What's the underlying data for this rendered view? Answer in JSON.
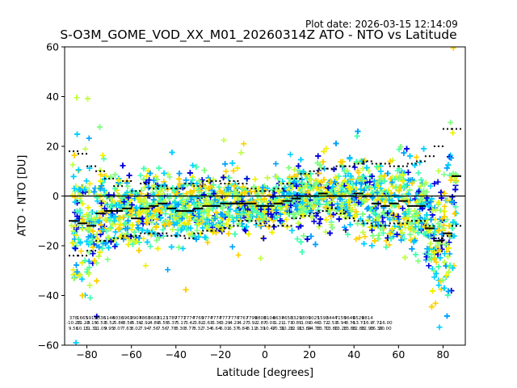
{
  "header": {
    "plot_date": "Plot date: 2026-03-15 12:14:09",
    "title": "S-O3M_GOME_VOD_XX_M01_20260314Z ATO - NTO vs Latitude"
  },
  "chart_data": {
    "type": "scatter",
    "title": "S-O3M_GOME_VOD_XX_M01_20260314Z ATO - NTO vs Latitude",
    "xlabel": "Latitude [degrees]",
    "ylabel": "ATO - NTO [DU]",
    "xlim": [
      -90,
      90
    ],
    "ylim": [
      -60,
      60
    ],
    "xticks": [
      -80,
      -60,
      -40,
      -20,
      0,
      20,
      40,
      60,
      80
    ],
    "yticks": [
      -60,
      -40,
      -20,
      0,
      20,
      40,
      60
    ],
    "zero_line": 0,
    "marker": "+",
    "point_colors": [
      "#0000dd",
      "#00a0ff",
      "#00d0ff",
      "#40ffb0",
      "#80ff80",
      "#c0ff40",
      "#f0f000",
      "#ffd000"
    ],
    "mean_profile": {
      "lat": [
        -86,
        -82,
        -78,
        -74,
        -70,
        -66,
        -62,
        -58,
        -54,
        -50,
        -46,
        -42,
        -38,
        -34,
        -30,
        -26,
        -22,
        -18,
        -14,
        -10,
        -6,
        -2,
        2,
        6,
        10,
        14,
        18,
        22,
        26,
        30,
        34,
        38,
        42,
        46,
        50,
        54,
        58,
        62,
        66,
        70,
        74,
        78,
        82,
        86
      ],
      "mean": [
        -10,
        -11,
        -12,
        -7,
        -6,
        -6,
        -5,
        -9,
        -5,
        -4,
        -3,
        -5,
        -6,
        -6,
        -5,
        -4,
        -4,
        -3,
        -3,
        -3,
        -3,
        -4,
        -4,
        -3,
        -2,
        -1,
        0,
        0,
        1,
        0,
        0,
        0,
        1,
        0,
        -3,
        -4,
        -3,
        -2,
        -4,
        -4,
        -13,
        -18,
        -15,
        8
      ],
      "upper": [
        18,
        17,
        12,
        10,
        7,
        4,
        6,
        2,
        5,
        3,
        4,
        3,
        3,
        5,
        4,
        6,
        6,
        5,
        6,
        5,
        3,
        2,
        2,
        3,
        5,
        7,
        9,
        10,
        11,
        11,
        12,
        12,
        13,
        14,
        13,
        13,
        12,
        12,
        13,
        14,
        16,
        20,
        27,
        27
      ],
      "lower": [
        -24,
        -24,
        -22,
        -18,
        -18,
        -17,
        -16,
        -16,
        -15,
        -15,
        -15,
        -16,
        -16,
        -17,
        -15,
        -14,
        -14,
        -13,
        -12,
        -10,
        -10,
        -11,
        -12,
        -12,
        -12,
        -9,
        -8,
        -7,
        -6,
        -5,
        -7,
        -9,
        -10,
        -11,
        -12,
        -12,
        -11,
        -11,
        -10,
        -10,
        -12,
        -17,
        -16,
        -12
      ]
    },
    "counts": {
      "lat": [
        -86,
        -82,
        -78,
        -74,
        -70,
        -66,
        -62,
        -58,
        -54,
        -50,
        -46,
        -42,
        -38,
        -34,
        -30,
        -26,
        -22,
        -18,
        -14,
        -10,
        -6,
        -2,
        2,
        6,
        10,
        14,
        18,
        22,
        26,
        30,
        34,
        38,
        42,
        46,
        50,
        54,
        58,
        62,
        66,
        70,
        74,
        78,
        82,
        86
      ],
      "line1": [
        "378",
        "1665",
        "5913",
        "8536",
        "5146",
        "4036",
        "3962",
        "9907",
        "4868",
        "3683",
        "8123",
        "1789",
        "7771",
        "7774",
        "7769",
        "9774",
        "7774",
        "7777",
        "7776",
        "7767",
        "7799",
        "8808",
        "8104",
        "8637",
        "4658",
        "3329",
        "3809",
        "3025",
        "1598",
        "3444",
        "7159",
        "9649",
        "6529",
        "8814",
        "",
        "",
        "",
        "",
        "",
        "",
        "",
        "",
        "",
        ""
      ],
      "line2": [
        "-10.28",
        "-11.23",
        "-8.15",
        "-6.53",
        "-5.52",
        "-5.86",
        "-8.58",
        "-5.39",
        "-2.92",
        "-4.89",
        "-5.55",
        "-5.37",
        "-5.17",
        "-3.42",
        "-3.82",
        "-2.63",
        "-3.36",
        "-3.29",
        "-4.23",
        "-4.27",
        "-3.92",
        "-2.87",
        "-0.03",
        "-1.21",
        "-1.73",
        "-0.85",
        "-1.09",
        "-0.46",
        "-3.72",
        "-2.53",
        "-5.94",
        "-8.76",
        "-13.77",
        "-16.9",
        "-7.72",
        "-16.00",
        "",
        "",
        "",
        "",
        "",
        "",
        "",
        ""
      ],
      "line3": [
        "9.56",
        "10.15",
        "11.31",
        "11.09",
        "9.95",
        "8.07",
        "7.63",
        "8.02",
        "7.94",
        "7.56",
        "7.56",
        "7.78",
        "8.30",
        "8.77",
        "8.32",
        "7.34",
        "6.64",
        "6.01",
        "6.37",
        "6.84",
        "8.11",
        "8.39",
        "10.47",
        "10.31",
        "10.28",
        "12.91",
        "13.84",
        "14.78",
        "13.70",
        "13.86",
        "13.28",
        "13.88",
        "12.88",
        "12.93",
        "16.39",
        "20.00",
        "",
        "",
        "",
        "",
        "",
        "",
        "",
        ""
      ]
    }
  }
}
